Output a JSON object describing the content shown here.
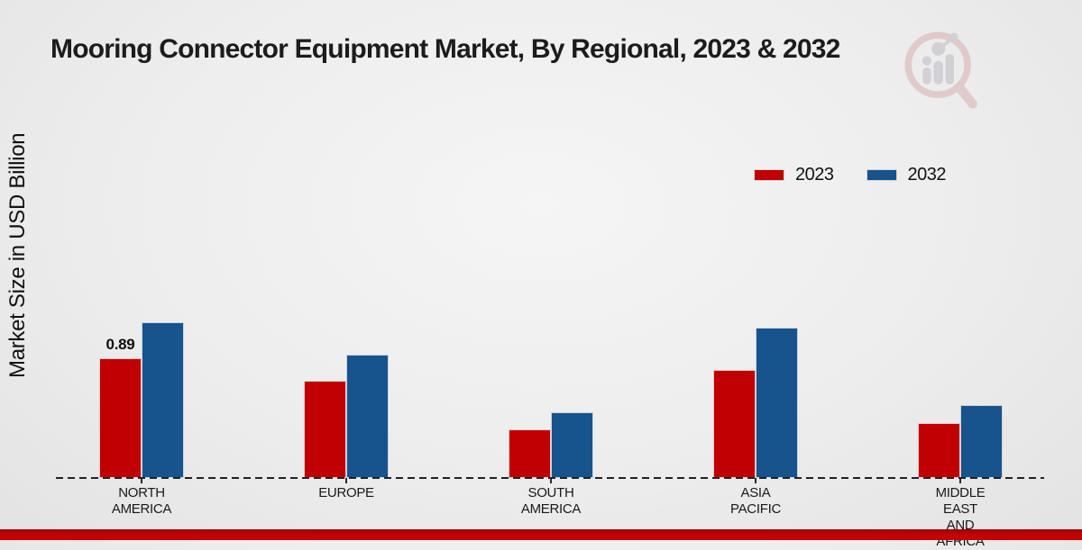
{
  "chart_data": {
    "type": "bar",
    "title": "Mooring Connector Equipment Market, By Regional, 2023 & 2032",
    "xlabel": "",
    "ylabel": "Market Size in USD Billion",
    "unit": "USD Billion",
    "categories": [
      "NORTH AMERICA",
      "EUROPE",
      "SOUTH AMERICA",
      "ASIA PACIFIC",
      "MIDDLE EAST AND AFRICA"
    ],
    "series": [
      {
        "name": "2023",
        "color": "#c00000",
        "values": [
          0.89,
          0.72,
          0.36,
          0.8,
          0.41
        ]
      },
      {
        "name": "2032",
        "color": "#17538d",
        "values": [
          1.16,
          0.92,
          0.49,
          1.12,
          0.54
        ]
      }
    ],
    "data_labels": [
      {
        "series_index": 0,
        "category_index": 0,
        "text": "0.89"
      }
    ],
    "baseline_style": "dashed",
    "legend_position": "top-right",
    "gridlines": false,
    "y_axis_tick_labels_visible": false
  },
  "branding": {
    "logo_icon": "magnifier-bar-chart-logo",
    "banner_color": "#c30101"
  }
}
